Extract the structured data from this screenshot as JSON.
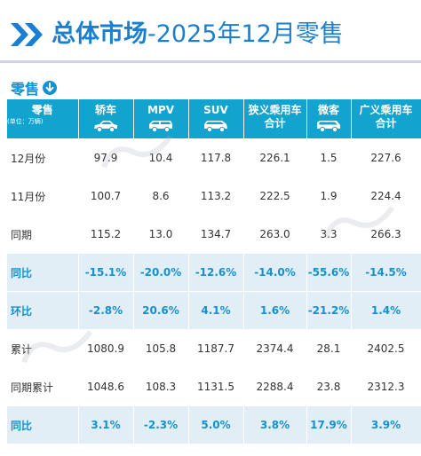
{
  "header": {
    "title_main": "总体市场",
    "title_sub": "-2025年12月零售"
  },
  "section": {
    "label": "零售"
  },
  "table": {
    "corner_label": "零售",
    "corner_unit": "(单位：万辆)",
    "columns": [
      {
        "label": "轿车",
        "icon": "sedan-icon"
      },
      {
        "label": "MPV",
        "icon": "mpv-icon"
      },
      {
        "label": "SUV",
        "icon": "suv-icon"
      },
      {
        "label": "狭义乘用车\n合计",
        "icon": null
      },
      {
        "label": "微客",
        "icon": "minivan-icon"
      },
      {
        "label": "广义乘用车\n合计",
        "icon": null
      }
    ],
    "rows": [
      {
        "label": "12月份",
        "cells": [
          "97.9",
          "10.4",
          "117.8",
          "226.1",
          "1.5",
          "227.6"
        ],
        "style": "plain"
      },
      {
        "label": "11月份",
        "cells": [
          "100.7",
          "8.6",
          "113.2",
          "222.5",
          "1.9",
          "224.4"
        ],
        "style": "plain"
      },
      {
        "label": "同期",
        "cells": [
          "115.2",
          "13.0",
          "134.7",
          "263.0",
          "3.3",
          "266.3"
        ],
        "style": "plain"
      },
      {
        "label": "同比",
        "cells": [
          "-15.1%",
          "-20.0%",
          "-12.6%",
          "-14.0%",
          "-55.6%",
          "-14.5%"
        ],
        "style": "pct"
      },
      {
        "label": "环比",
        "cells": [
          "-2.8%",
          "20.6%",
          "4.1%",
          "1.6%",
          "-21.2%",
          "1.4%"
        ],
        "style": "pct"
      },
      {
        "label": "累计",
        "cells": [
          "1080.9",
          "105.8",
          "1187.7",
          "2374.4",
          "28.1",
          "2402.5"
        ],
        "style": "plain"
      },
      {
        "label": "同期累计",
        "cells": [
          "1048.6",
          "108.3",
          "1131.5",
          "2288.4",
          "23.8",
          "2312.3"
        ],
        "style": "plain"
      },
      {
        "label": "同比",
        "cells": [
          "3.1%",
          "-2.3%",
          "5.0%",
          "3.8%",
          "17.9%",
          "3.9%"
        ],
        "style": "pct"
      }
    ]
  },
  "chart_data": {
    "type": "table",
    "title": "总体市场-2025年12月零售",
    "unit": "(单位：万辆)",
    "columns": [
      "轿车",
      "MPV",
      "SUV",
      "狭义乘用车合计",
      "微客",
      "广义乘用车合计"
    ],
    "rows": [
      {
        "label": "12月份",
        "values": [
          97.9,
          10.4,
          117.8,
          226.1,
          1.5,
          227.6
        ]
      },
      {
        "label": "11月份",
        "values": [
          100.7,
          8.6,
          113.2,
          222.5,
          1.9,
          224.4
        ]
      },
      {
        "label": "同期",
        "values": [
          115.2,
          13.0,
          134.7,
          263.0,
          3.3,
          266.3
        ]
      },
      {
        "label": "同比",
        "values": [
          "-15.1%",
          "-20.0%",
          "-12.6%",
          "-14.0%",
          "-55.6%",
          "-14.5%"
        ]
      },
      {
        "label": "环比",
        "values": [
          "-2.8%",
          "20.6%",
          "4.1%",
          "1.6%",
          "-21.2%",
          "1.4%"
        ]
      },
      {
        "label": "累计",
        "values": [
          1080.9,
          105.8,
          1187.7,
          2374.4,
          28.1,
          2402.5
        ]
      },
      {
        "label": "同期累计",
        "values": [
          1048.6,
          108.3,
          1131.5,
          2288.4,
          23.8,
          2312.3
        ]
      },
      {
        "label": "同比",
        "values": [
          "3.1%",
          "-2.3%",
          "5.0%",
          "3.8%",
          "17.9%",
          "3.9%"
        ]
      }
    ]
  },
  "colors": {
    "accent": "#1a7fd0",
    "header_bg": "#12a3cf",
    "row_shade": "#e2eef6",
    "pct_text": "#1591d0"
  }
}
